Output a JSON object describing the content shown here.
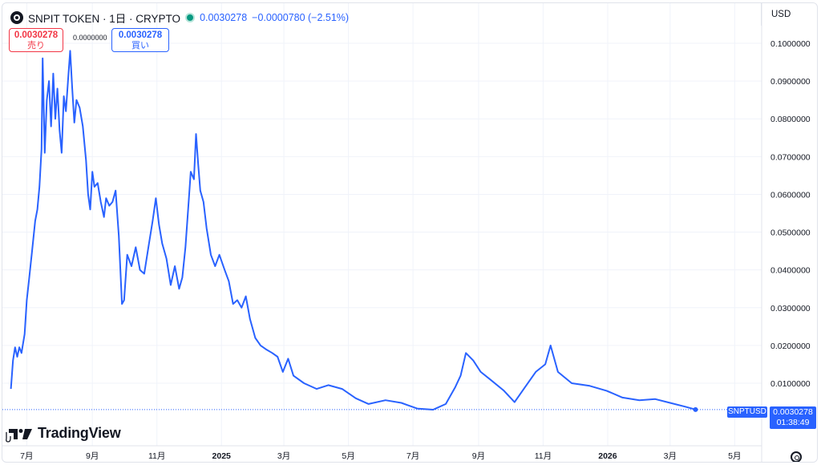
{
  "header": {
    "symbol_title": "SNPIT TOKEN · 1日 · CRYPTO",
    "price": "0.0030278",
    "change": "−0.0000780 (−2.51%)",
    "currency": "USD"
  },
  "quotes": {
    "sell_value": "0.0030278",
    "sell_label": "売り",
    "spread": "0.0000000",
    "buy_value": "0.0030278",
    "buy_label": "買い"
  },
  "last": {
    "symbol": "SNPTUSD",
    "price": "0.0030278",
    "countdown": "01:38:49"
  },
  "branding": {
    "name": "TradingView"
  },
  "colors": {
    "line": "#2962ff",
    "grid": "#f0f3fa",
    "sell": "#f23645",
    "buy": "#2962ff"
  },
  "chart_data": {
    "type": "line",
    "ylim": [
      0,
      0.105
    ],
    "y_ticks": [
      "0.1000000",
      "0.0900000",
      "0.0800000",
      "0.0700000",
      "0.0600000",
      "0.0500000",
      "0.0400000",
      "0.0300000",
      "0.0200000",
      "0.0100000"
    ],
    "y_tick_values": [
      0.1,
      0.09,
      0.08,
      0.07,
      0.06,
      0.05,
      0.04,
      0.03,
      0.02,
      0.01
    ],
    "x_ticks": [
      "7月",
      "9月",
      "11月",
      "2025",
      "3月",
      "5月",
      "7月",
      "9月",
      "11月",
      "2026",
      "3月",
      "5月"
    ],
    "x_tick_dates": [
      "2024-07-01",
      "2024-09-01",
      "2024-11-01",
      "2025-01-01",
      "2025-03-01",
      "2025-05-01",
      "2025-07-01",
      "2025-09-01",
      "2025-11-01",
      "2026-01-01",
      "2026-03-01",
      "2026-05-01"
    ],
    "x_range": [
      "2024-06-08",
      "2026-05-25"
    ],
    "series": [
      {
        "points": [
          [
            "2024-06-16",
            0.0085
          ],
          [
            "2024-06-18",
            0.016
          ],
          [
            "2024-06-20",
            0.0195
          ],
          [
            "2024-06-22",
            0.017
          ],
          [
            "2024-06-24",
            0.0195
          ],
          [
            "2024-06-26",
            0.018
          ],
          [
            "2024-06-29",
            0.023
          ],
          [
            "2024-07-01",
            0.032
          ],
          [
            "2024-07-03",
            0.037
          ],
          [
            "2024-07-06",
            0.045
          ],
          [
            "2024-07-09",
            0.053
          ],
          [
            "2024-07-11",
            0.056
          ],
          [
            "2024-07-13",
            0.062
          ],
          [
            "2024-07-15",
            0.072
          ],
          [
            "2024-07-16",
            0.096
          ],
          [
            "2024-07-18",
            0.071
          ],
          [
            "2024-07-20",
            0.085
          ],
          [
            "2024-07-22",
            0.09
          ],
          [
            "2024-07-24",
            0.078
          ],
          [
            "2024-07-26",
            0.092
          ],
          [
            "2024-07-28",
            0.08
          ],
          [
            "2024-07-30",
            0.088
          ],
          [
            "2024-08-01",
            0.077
          ],
          [
            "2024-08-03",
            0.071
          ],
          [
            "2024-08-05",
            0.086
          ],
          [
            "2024-08-07",
            0.082
          ],
          [
            "2024-08-09",
            0.09
          ],
          [
            "2024-08-11",
            0.098
          ],
          [
            "2024-08-13",
            0.088
          ],
          [
            "2024-08-15",
            0.079
          ],
          [
            "2024-08-17",
            0.085
          ],
          [
            "2024-08-20",
            0.083
          ],
          [
            "2024-08-23",
            0.078
          ],
          [
            "2024-08-26",
            0.069
          ],
          [
            "2024-08-28",
            0.06
          ],
          [
            "2024-08-30",
            0.056
          ],
          [
            "2024-09-01",
            0.066
          ],
          [
            "2024-09-03",
            0.062
          ],
          [
            "2024-09-06",
            0.063
          ],
          [
            "2024-09-09",
            0.058
          ],
          [
            "2024-09-12",
            0.054
          ],
          [
            "2024-09-14",
            0.059
          ],
          [
            "2024-09-17",
            0.057
          ],
          [
            "2024-09-20",
            0.058
          ],
          [
            "2024-09-23",
            0.061
          ],
          [
            "2024-09-26",
            0.049
          ],
          [
            "2024-09-29",
            0.031
          ],
          [
            "2024-10-01",
            0.032
          ],
          [
            "2024-10-04",
            0.044
          ],
          [
            "2024-10-08",
            0.041
          ],
          [
            "2024-10-12",
            0.046
          ],
          [
            "2024-10-16",
            0.04
          ],
          [
            "2024-10-20",
            0.039
          ],
          [
            "2024-10-24",
            0.046
          ],
          [
            "2024-10-28",
            0.053
          ],
          [
            "2024-10-31",
            0.059
          ],
          [
            "2024-11-03",
            0.052
          ],
          [
            "2024-11-06",
            0.047
          ],
          [
            "2024-11-10",
            0.043
          ],
          [
            "2024-11-14",
            0.036
          ],
          [
            "2024-11-18",
            0.041
          ],
          [
            "2024-11-22",
            0.035
          ],
          [
            "2024-11-25",
            0.038
          ],
          [
            "2024-11-28",
            0.046
          ],
          [
            "2024-12-01",
            0.058
          ],
          [
            "2024-12-03",
            0.066
          ],
          [
            "2024-12-06",
            0.064
          ],
          [
            "2024-12-08",
            0.076
          ],
          [
            "2024-12-10",
            0.068
          ],
          [
            "2024-12-12",
            0.061
          ],
          [
            "2024-12-15",
            0.058
          ],
          [
            "2024-12-18",
            0.051
          ],
          [
            "2024-12-22",
            0.044
          ],
          [
            "2024-12-26",
            0.041
          ],
          [
            "2024-12-30",
            0.044
          ],
          [
            "2025-01-04",
            0.04
          ],
          [
            "2025-01-08",
            0.037
          ],
          [
            "2025-01-12",
            0.031
          ],
          [
            "2025-01-16",
            0.032
          ],
          [
            "2025-01-20",
            0.03
          ],
          [
            "2025-01-24",
            0.033
          ],
          [
            "2025-01-28",
            0.027
          ],
          [
            "2025-02-02",
            0.022
          ],
          [
            "2025-02-07",
            0.02
          ],
          [
            "2025-02-12",
            0.019
          ],
          [
            "2025-02-18",
            0.018
          ],
          [
            "2025-02-23",
            0.017
          ],
          [
            "2025-02-28",
            0.013
          ],
          [
            "2025-03-05",
            0.0165
          ],
          [
            "2025-03-10",
            0.012
          ],
          [
            "2025-03-20",
            0.01
          ],
          [
            "2025-04-01",
            0.0085
          ],
          [
            "2025-04-12",
            0.0095
          ],
          [
            "2025-04-25",
            0.0085
          ],
          [
            "2025-05-08",
            0.006
          ],
          [
            "2025-05-20",
            0.0045
          ],
          [
            "2025-06-05",
            0.0055
          ],
          [
            "2025-06-20",
            0.0048
          ],
          [
            "2025-07-05",
            0.0033
          ],
          [
            "2025-07-20",
            0.003
          ],
          [
            "2025-08-01",
            0.0045
          ],
          [
            "2025-08-10",
            0.009
          ],
          [
            "2025-08-15",
            0.012
          ],
          [
            "2025-08-20",
            0.018
          ],
          [
            "2025-08-27",
            0.016
          ],
          [
            "2025-09-03",
            0.013
          ],
          [
            "2025-09-12",
            0.011
          ],
          [
            "2025-09-25",
            0.008
          ],
          [
            "2025-10-05",
            0.005
          ],
          [
            "2025-10-15",
            0.009
          ],
          [
            "2025-10-25",
            0.013
          ],
          [
            "2025-11-03",
            0.015
          ],
          [
            "2025-11-08",
            0.02
          ],
          [
            "2025-11-15",
            0.013
          ],
          [
            "2025-11-28",
            0.01
          ],
          [
            "2025-12-15",
            0.0093
          ],
          [
            "2025-12-31",
            0.008
          ],
          [
            "2026-01-15",
            0.0062
          ],
          [
            "2026-01-31",
            0.0055
          ],
          [
            "2026-02-15",
            0.0058
          ],
          [
            "2026-03-01",
            0.0048
          ],
          [
            "2026-03-15",
            0.0038
          ],
          [
            "2026-03-25",
            0.0030278
          ]
        ]
      }
    ],
    "last_value": 0.0030278,
    "grid": true
  }
}
